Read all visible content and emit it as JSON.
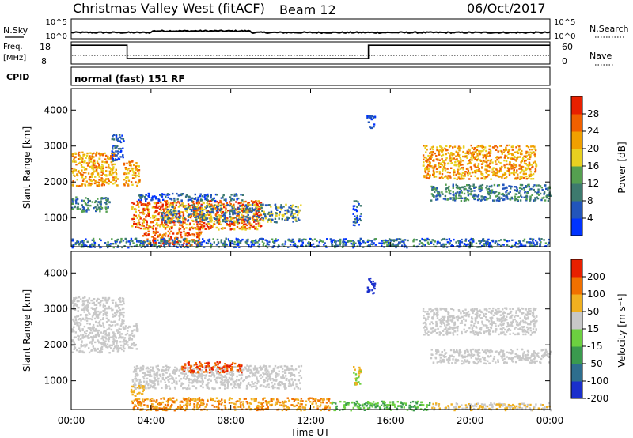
{
  "header": {
    "station": "Christmas Valley West (fitACF)",
    "beam": "Beam 12",
    "date": "06/Oct/2017"
  },
  "noise_panel": {
    "left_label": "N.Sky",
    "right_label": "N.Search",
    "left_ticks": [
      "10^5",
      "10^0"
    ],
    "right_ticks": [
      "10^5",
      "10^0"
    ]
  },
  "freq_panel": {
    "left_label_1": "Freq.",
    "left_label_2": "[MHz]",
    "right_label": "Nave",
    "left_ticks": [
      "18",
      "8"
    ],
    "right_ticks": [
      "60",
      "0"
    ],
    "freq_steps": [
      {
        "start_h": 0.0,
        "end_h": 2.8,
        "mhz": 16.5
      },
      {
        "start_h": 2.8,
        "end_h": 14.9,
        "mhz": 10.5
      },
      {
        "start_h": 14.9,
        "end_h": 24.0,
        "mhz": 16.5
      }
    ]
  },
  "cpid": {
    "label": "CPID",
    "text": "normal (fast) 151 RF"
  },
  "chart_data": [
    {
      "type": "heatmap",
      "name": "power",
      "ylabel": "Slant Range [km]",
      "yticks": [
        "1000",
        "2000",
        "3000",
        "4000"
      ],
      "ylim": [
        200,
        4600
      ],
      "colorbar_label": "Power [dB]",
      "colorbar_ticks": [
        "4",
        "8",
        "12",
        "16",
        "20",
        "24",
        "28"
      ],
      "colorbar_colors": [
        "#0033ff",
        "#2255bb",
        "#3d7a6e",
        "#55a050",
        "#e8d020",
        "#f0a000",
        "#f06000",
        "#e82000"
      ],
      "regions": [
        {
          "t0": 0.0,
          "t1": 2.3,
          "r0": 1900,
          "r1": 2850,
          "levels": [
            4,
            6,
            5
          ]
        },
        {
          "t0": 2.0,
          "t1": 2.6,
          "r0": 2600,
          "r1": 3350,
          "levels": [
            1,
            2,
            0
          ]
        },
        {
          "t0": 0.0,
          "t1": 1.9,
          "r0": 1200,
          "r1": 1600,
          "levels": [
            1,
            2,
            3
          ]
        },
        {
          "t0": 2.6,
          "t1": 3.4,
          "r0": 1900,
          "r1": 2600,
          "levels": [
            4,
            6,
            5
          ]
        },
        {
          "t0": 3.0,
          "t1": 9.5,
          "r0": 700,
          "r1": 1500,
          "levels": [
            4,
            6,
            7
          ]
        },
        {
          "t0": 3.3,
          "t1": 8.6,
          "r0": 1500,
          "r1": 1700,
          "levels": [
            0,
            1,
            2
          ]
        },
        {
          "t0": 4.5,
          "t1": 11.5,
          "r0": 900,
          "r1": 1400,
          "levels": [
            1,
            2,
            4
          ]
        },
        {
          "t0": 3.5,
          "t1": 6.5,
          "r0": 250,
          "r1": 650,
          "levels": [
            6,
            7,
            5
          ]
        },
        {
          "t0": 14.1,
          "t1": 14.5,
          "r0": 800,
          "r1": 1500,
          "levels": [
            0,
            1,
            2
          ]
        },
        {
          "t0": 14.8,
          "t1": 15.2,
          "r0": 3500,
          "r1": 3900,
          "levels": [
            0,
            1
          ]
        },
        {
          "t0": 17.6,
          "t1": 23.3,
          "r0": 2100,
          "r1": 3050,
          "levels": [
            4,
            6,
            5
          ]
        },
        {
          "t0": 18.0,
          "t1": 24.0,
          "r0": 1500,
          "r1": 1950,
          "levels": [
            1,
            2,
            3
          ]
        },
        {
          "t0": 0.0,
          "t1": 24.0,
          "r0": 200,
          "r1": 450,
          "levels": [
            0,
            1,
            2,
            3
          ]
        }
      ]
    },
    {
      "type": "heatmap",
      "name": "velocity",
      "ylabel": "Slant Range [km]",
      "yticks": [
        "1000",
        "2000",
        "3000",
        "4000"
      ],
      "ylim": [
        200,
        4600
      ],
      "colorbar_label": "Velocity [m s⁻¹]",
      "colorbar_ticks": [
        "200",
        "100",
        "50",
        "15",
        "-15",
        "-50",
        "-100",
        "-200"
      ],
      "colorbar_colors": [
        "#1a2fcc",
        "#2e6e8e",
        "#3a9a4e",
        "#6cd040",
        "#c8c8c8",
        "#f0b020",
        "#f07000",
        "#e82000"
      ],
      "regions": [
        {
          "t0": 0.0,
          "t1": 2.6,
          "r0": 1800,
          "r1": 3350,
          "levels": [
            4
          ]
        },
        {
          "t0": 2.6,
          "t1": 3.3,
          "r0": 1900,
          "r1": 2600,
          "levels": [
            4
          ]
        },
        {
          "t0": 3.0,
          "t1": 11.5,
          "r0": 800,
          "r1": 1450,
          "levels": [
            4
          ]
        },
        {
          "t0": 5.5,
          "t1": 8.5,
          "r0": 1250,
          "r1": 1550,
          "levels": [
            7,
            6
          ]
        },
        {
          "t0": 2.9,
          "t1": 3.6,
          "r0": 600,
          "r1": 900,
          "levels": [
            5
          ]
        },
        {
          "t0": 3.0,
          "t1": 13.0,
          "r0": 200,
          "r1": 550,
          "levels": [
            5,
            6
          ]
        },
        {
          "t0": 13.0,
          "t1": 18.0,
          "r0": 200,
          "r1": 450,
          "levels": [
            3,
            2
          ]
        },
        {
          "t0": 18.0,
          "t1": 24.0,
          "r0": 200,
          "r1": 400,
          "levels": [
            5,
            4
          ]
        },
        {
          "t0": 14.1,
          "t1": 14.5,
          "r0": 900,
          "r1": 1450,
          "levels": [
            3,
            5
          ]
        },
        {
          "t0": 14.8,
          "t1": 15.2,
          "r0": 3450,
          "r1": 3900,
          "levels": [
            0
          ]
        },
        {
          "t0": 17.6,
          "t1": 23.3,
          "r0": 2300,
          "r1": 3050,
          "levels": [
            4
          ]
        },
        {
          "t0": 18.0,
          "t1": 24.0,
          "r0": 1500,
          "r1": 1900,
          "levels": [
            4
          ]
        }
      ]
    }
  ],
  "time_axis": {
    "ticks": [
      "00:00",
      "04:00",
      "08:00",
      "12:00",
      "16:00",
      "20:00",
      "00:00"
    ],
    "label": "Time UT"
  }
}
